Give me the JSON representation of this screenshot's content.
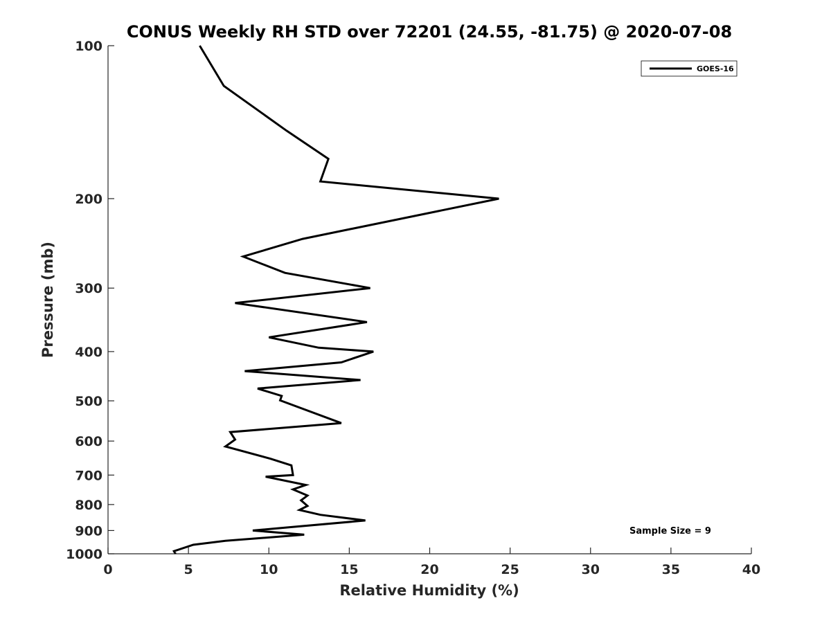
{
  "chart_data": {
    "type": "line",
    "title": "CONUS Weekly RH STD over 72201 (24.55, -81.75) @ 2020-07-08",
    "xlabel": "Relative Humidity (%)",
    "ylabel": "Pressure (mb)",
    "xlim": [
      0,
      40
    ],
    "ylim": [
      100,
      1000
    ],
    "y_scale": "log",
    "y_reversed": true,
    "x_ticks": [
      "0",
      "5",
      "10",
      "15",
      "20",
      "25",
      "30",
      "35",
      "40"
    ],
    "y_ticks": [
      "100",
      "200",
      "300",
      "400",
      "500",
      "600",
      "700",
      "800",
      "900",
      "1000"
    ],
    "grid": false,
    "legend_position": "top-right",
    "line_color": "#000000",
    "annotation": "Sample Size = 9",
    "series": [
      {
        "name": "GOES-16",
        "x": [
          5.7,
          7.2,
          11.1,
          13.7,
          13.2,
          24.3,
          12.1,
          8.4,
          11.0,
          16.3,
          7.9,
          16.1,
          10.0,
          13.1,
          16.5,
          14.5,
          8.5,
          15.7,
          9.3,
          10.8,
          10.7,
          14.5,
          7.6,
          7.9,
          7.3,
          10.1,
          11.4,
          11.5,
          9.8,
          12.3,
          11.5,
          12.4,
          12.0,
          12.4,
          11.9,
          13.2,
          16.0,
          9.0,
          12.2,
          7.3,
          5.3,
          4.1,
          4.2
        ],
        "y": [
          100,
          120,
          147,
          167,
          185,
          200,
          240,
          260,
          280,
          300,
          321,
          350,
          375,
          393,
          400,
          420,
          437,
          455,
          473,
          489,
          499,
          553,
          576,
          596,
          615,
          650,
          670,
          700,
          705,
          732,
          747,
          768,
          785,
          805,
          820,
          838,
          860,
          900,
          917,
          943,
          960,
          988,
          1000
        ]
      }
    ]
  }
}
